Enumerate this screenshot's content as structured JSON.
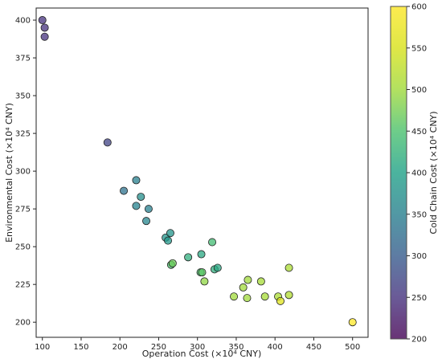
{
  "chart_data": {
    "type": "scatter",
    "xlabel": "Operation Cost (×10⁴ CNY)",
    "ylabel": "Environmental Cost (×10⁴ CNY)",
    "colorbar_label": "Cold Chain Cost (×10⁴ CNY)",
    "xlim": [
      92,
      520
    ],
    "ylim": [
      190,
      408
    ],
    "xticks": [
      100,
      150,
      200,
      250,
      300,
      350,
      400,
      450,
      500
    ],
    "yticks": [
      200,
      225,
      250,
      275,
      300,
      325,
      350,
      375,
      400
    ],
    "clim": [
      200,
      600
    ],
    "cticks": [
      200,
      250,
      300,
      350,
      400,
      450,
      500,
      550,
      600
    ],
    "colormap": "viridis",
    "grid": false,
    "points": [
      {
        "x": 100,
        "y": 400,
        "c": 250
      },
      {
        "x": 103,
        "y": 395,
        "c": 250
      },
      {
        "x": 103,
        "y": 389,
        "c": 250
      },
      {
        "x": 184,
        "y": 319,
        "c": 270
      },
      {
        "x": 205,
        "y": 287,
        "c": 330
      },
      {
        "x": 221,
        "y": 294,
        "c": 350
      },
      {
        "x": 221,
        "y": 277,
        "c": 355
      },
      {
        "x": 227,
        "y": 283,
        "c": 370
      },
      {
        "x": 234,
        "y": 267,
        "c": 360
      },
      {
        "x": 237,
        "y": 275,
        "c": 350
      },
      {
        "x": 259,
        "y": 256,
        "c": 380
      },
      {
        "x": 262,
        "y": 254,
        "c": 385
      },
      {
        "x": 265,
        "y": 259,
        "c": 380
      },
      {
        "x": 266,
        "y": 238,
        "c": 450
      },
      {
        "x": 268,
        "y": 239,
        "c": 470
      },
      {
        "x": 288,
        "y": 243,
        "c": 420
      },
      {
        "x": 304,
        "y": 233,
        "c": 450
      },
      {
        "x": 305,
        "y": 245,
        "c": 410
      },
      {
        "x": 306,
        "y": 233,
        "c": 460
      },
      {
        "x": 309,
        "y": 227,
        "c": 490
      },
      {
        "x": 319,
        "y": 253,
        "c": 440
      },
      {
        "x": 322,
        "y": 235,
        "c": 420
      },
      {
        "x": 326,
        "y": 236,
        "c": 410
      },
      {
        "x": 347,
        "y": 217,
        "c": 500
      },
      {
        "x": 359,
        "y": 223,
        "c": 500
      },
      {
        "x": 364,
        "y": 216,
        "c": 500
      },
      {
        "x": 365,
        "y": 228,
        "c": 500
      },
      {
        "x": 382,
        "y": 227,
        "c": 505
      },
      {
        "x": 387,
        "y": 217,
        "c": 505
      },
      {
        "x": 404,
        "y": 217,
        "c": 510
      },
      {
        "x": 407,
        "y": 214,
        "c": 560
      },
      {
        "x": 418,
        "y": 236,
        "c": 510
      },
      {
        "x": 418,
        "y": 218,
        "c": 515
      },
      {
        "x": 500,
        "y": 200,
        "c": 600
      }
    ]
  }
}
